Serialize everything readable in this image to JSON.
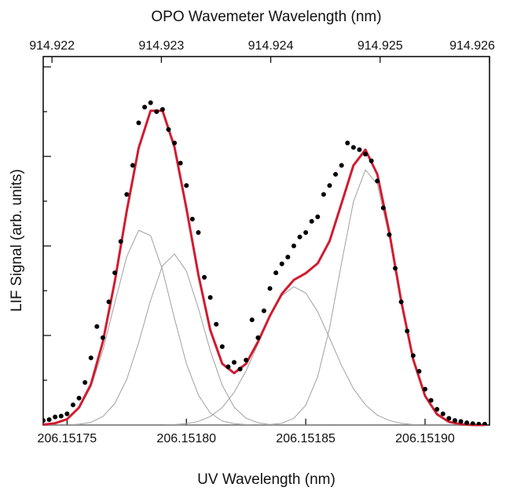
{
  "chart_data": {
    "type": "line",
    "title": "OPO Wavemeter Wavelength (nm)",
    "xlabel": "UV Wavelength (nm)",
    "ylabel": "LIF Signal (arb. units)",
    "xlim": [
      206.15174,
      206.151927
    ],
    "xticks": [
      206.15175,
      {
        "value": 206.1518,
        "label": "206.15180"
      },
      206.15185,
      {
        "value": 206.1519,
        "label": "206.15190"
      }
    ],
    "x2lim": [
      914.92192,
      914.926
    ],
    "x2ticks": [
      914.922,
      914.923,
      914.924,
      914.925,
      914.926
    ],
    "ylim": [
      0,
      8.23
    ],
    "yticks": [
      1,
      2,
      3,
      4,
      5,
      6,
      7,
      8
    ],
    "x": [
      206.15174,
      206.151745,
      206.15175,
      206.151755,
      206.15176,
      206.151765,
      206.15177,
      206.151775,
      206.15178,
      206.151785,
      206.15179,
      206.151795,
      206.1518,
      206.151805,
      206.15181,
      206.151815,
      206.15182,
      206.151825,
      206.15183,
      206.151835,
      206.15184,
      206.151845,
      206.15185,
      206.151855,
      206.15186,
      206.151865,
      206.15187,
      206.151875,
      206.15188,
      206.151885,
      206.15189,
      206.151895,
      206.1519,
      206.151905,
      206.15191,
      206.151915,
      206.15192,
      206.151925
    ],
    "series": [
      {
        "color": "#a0a0a0",
        "values": [
          0.01,
          0.04,
          0.13,
          0.37,
          0.85,
          1.67,
          2.73,
          3.76,
          4.35,
          4.23,
          3.46,
          2.38,
          1.37,
          0.67,
          0.27,
          0.09,
          0.03,
          0.01,
          0,
          0,
          0,
          0,
          0,
          0,
          0,
          0,
          0,
          0,
          0,
          0,
          0,
          0,
          0,
          0,
          0,
          0,
          0,
          0
        ]
      },
      {
        "color": "#a0a0a0",
        "values": [
          0,
          0,
          0,
          0.02,
          0.06,
          0.19,
          0.48,
          1.02,
          1.84,
          2.79,
          3.56,
          3.82,
          3.44,
          2.61,
          1.66,
          0.89,
          0.4,
          0.15,
          0.05,
          0.01,
          0,
          0,
          0,
          0,
          0,
          0,
          0,
          0,
          0,
          0,
          0,
          0,
          0,
          0,
          0,
          0,
          0,
          0
        ]
      },
      {
        "color": "#a0a0a0",
        "values": [
          0,
          0,
          0,
          0,
          0,
          0,
          0,
          0,
          0,
          0,
          0,
          0.01,
          0.03,
          0.08,
          0.19,
          0.39,
          0.73,
          1.21,
          1.81,
          2.42,
          2.89,
          3.09,
          2.95,
          2.53,
          1.94,
          1.33,
          0.81,
          0.45,
          0.22,
          0.1,
          0.04,
          0.01,
          0,
          0,
          0,
          0,
          0,
          0
        ]
      },
      {
        "color": "#a0a0a0",
        "values": [
          0,
          0,
          0,
          0,
          0,
          0,
          0,
          0,
          0,
          0,
          0,
          0,
          0,
          0,
          0,
          0,
          0,
          0,
          0,
          0.01,
          0.04,
          0.15,
          0.44,
          1.08,
          2.17,
          3.62,
          4.99,
          5.7,
          5.38,
          4.21,
          2.73,
          1.46,
          0.65,
          0.24,
          0.07,
          0.02,
          0,
          0
        ]
      },
      {
        "color": "#d01c30",
        "values": [
          0.01,
          0.04,
          0.13,
          0.39,
          0.91,
          1.86,
          3.21,
          4.78,
          6.19,
          7.02,
          7.02,
          6.21,
          4.84,
          3.36,
          2.12,
          1.37,
          1.16,
          1.37,
          1.86,
          2.44,
          2.93,
          3.24,
          3.39,
          3.61,
          4.11,
          4.95,
          5.8,
          6.15,
          5.6,
          4.31,
          2.77,
          1.47,
          0.65,
          0.24,
          0.07,
          0.02,
          0,
          0
        ]
      }
    ],
    "points": {
      "color": "#000000",
      "x": [
        206.15174,
        206.1517425,
        206.151745,
        206.1517475,
        206.15175,
        206.1517525,
        206.151755,
        206.1517575,
        206.15176,
        206.1517625,
        206.151765,
        206.1517675,
        206.15177,
        206.1517725,
        206.151775,
        206.1517775,
        206.15178,
        206.1517825,
        206.151785,
        206.1517875,
        206.15179,
        206.1517925,
        206.151795,
        206.1517975,
        206.1518,
        206.1518025,
        206.151805,
        206.1518075,
        206.15181,
        206.1518125,
        206.151815,
        206.1518175,
        206.15182,
        206.1518225,
        206.151825,
        206.1518275,
        206.15183,
        206.1518325,
        206.151835,
        206.1518375,
        206.15184,
        206.1518425,
        206.151845,
        206.1518475,
        206.15185,
        206.1518525,
        206.151855,
        206.1518575,
        206.15186,
        206.1518625,
        206.151865,
        206.1518675,
        206.15187,
        206.1518725,
        206.151875,
        206.1518775,
        206.15188,
        206.1518825,
        206.151885,
        206.1518875,
        206.15189,
        206.1518925,
        206.151895,
        206.1518975,
        206.1519,
        206.1519025,
        206.151905,
        206.1519075,
        206.15191,
        206.1519125,
        206.151915,
        206.1519175,
        206.15192,
        206.1519225,
        206.151925
      ],
      "values": [
        0.1,
        0.12,
        0.18,
        0.2,
        0.25,
        0.45,
        0.6,
        0.95,
        1.5,
        2.2,
        1.95,
        2.75,
        3.4,
        4.1,
        5.15,
        5.8,
        6.75,
        7.1,
        7.2,
        7.0,
        7.05,
        6.6,
        6.3,
        5.85,
        5.35,
        4.6,
        4.3,
        3.3,
        2.85,
        2.25,
        1.75,
        1.3,
        1.4,
        1.25,
        1.45,
        2.35,
        1.95,
        2.55,
        3.05,
        3.4,
        3.6,
        3.75,
        4.0,
        4.2,
        4.3,
        4.55,
        4.65,
        5.15,
        5.35,
        5.6,
        5.8,
        6.3,
        6.2,
        6.15,
        6.05,
        5.9,
        5.45,
        4.85,
        4.25,
        3.5,
        2.75,
        2.1,
        1.55,
        1.2,
        0.8,
        0.55,
        0.35,
        0.25,
        0.15,
        0.1,
        0.08,
        0.05,
        0.03,
        0.02,
        0.02
      ]
    }
  }
}
